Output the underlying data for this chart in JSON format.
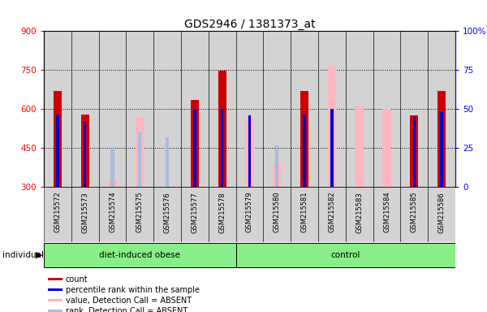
{
  "title": "GDS2946 / 1381373_at",
  "samples": [
    "GSM215572",
    "GSM215573",
    "GSM215574",
    "GSM215575",
    "GSM215576",
    "GSM215577",
    "GSM215578",
    "GSM215579",
    "GSM215580",
    "GSM215581",
    "GSM215582",
    "GSM215583",
    "GSM215584",
    "GSM215585",
    "GSM215586"
  ],
  "n_obese": 7,
  "n_control": 8,
  "count_values": [
    670,
    578,
    null,
    null,
    null,
    635,
    748,
    null,
    null,
    670,
    null,
    null,
    null,
    575,
    670
  ],
  "rank_values": [
    580,
    553,
    null,
    null,
    null,
    597,
    600,
    575,
    null,
    578,
    600,
    null,
    null,
    570,
    590
  ],
  "absent_value_values": [
    null,
    null,
    325,
    570,
    null,
    null,
    null,
    565,
    390,
    null,
    770,
    610,
    600,
    null,
    null
  ],
  "absent_rank_values": [
    null,
    null,
    455,
    510,
    493,
    null,
    null,
    null,
    460,
    null,
    null,
    null,
    null,
    null,
    null
  ],
  "ylim_left": [
    300,
    900
  ],
  "ylim_right": [
    0,
    100
  ],
  "yticks_left": [
    300,
    450,
    600,
    750,
    900
  ],
  "yticks_right": [
    0,
    25,
    50,
    75,
    100
  ],
  "bar_color_count": "#CC0000",
  "bar_color_rank": "#0000CC",
  "bar_color_absent_value": "#FFB6C1",
  "bar_color_absent_rank": "#AABBDD",
  "cell_bg": "#D3D3D3",
  "plot_bg": "#FFFFFF",
  "group_green": "#88EE88"
}
